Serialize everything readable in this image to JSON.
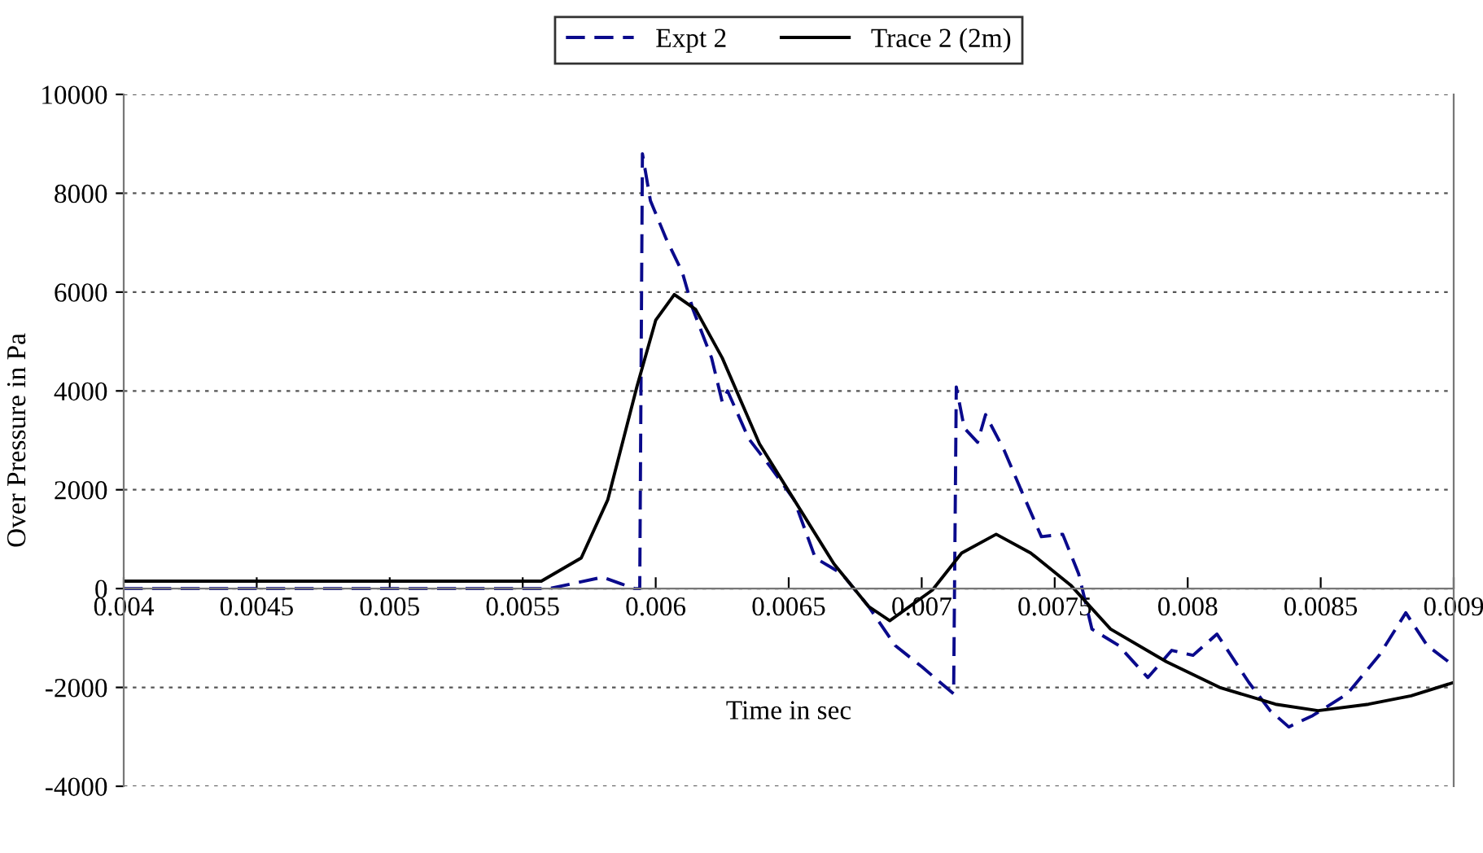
{
  "chart_data": {
    "type": "line",
    "xlabel": "Time in sec",
    "ylabel": "Over Pressure in Pa",
    "xlim": [
      0.004,
      0.009
    ],
    "xticks": [
      0.004,
      0.0045,
      0.005,
      0.0055,
      0.006,
      0.0065,
      0.007,
      0.0075,
      0.008,
      0.0085,
      0.009
    ],
    "ylim": [
      -4000,
      10000
    ],
    "yticks": [
      -4000,
      -2000,
      0,
      2000,
      4000,
      6000,
      8000,
      10000
    ],
    "grid": "y",
    "legend": "top",
    "marker": "none",
    "series": [
      {
        "name": "Expt 2",
        "color": "#0a0a8c",
        "line_style": "dashed",
        "x": [
          0.004,
          0.0045,
          0.005,
          0.0055,
          0.0056,
          0.0058,
          0.00592,
          0.00594,
          0.00595,
          0.00598,
          0.00604,
          0.0061,
          0.00614,
          0.00621,
          0.00625,
          0.00627,
          0.00635,
          0.00643,
          0.00652,
          0.0066,
          0.0067,
          0.0068,
          0.0069,
          0.007,
          0.00712,
          0.00713,
          0.00716,
          0.00721,
          0.00724,
          0.00731,
          0.00737,
          0.00745,
          0.00753,
          0.00759,
          0.00764,
          0.00774,
          0.00785,
          0.00794,
          0.00802,
          0.00811,
          0.00823,
          0.00831,
          0.00838,
          0.00847,
          0.0086,
          0.00872,
          0.00882,
          0.0089,
          0.00899
        ],
        "values": [
          0,
          0,
          0,
          0,
          0,
          230,
          0,
          0,
          8800,
          7850,
          7070,
          6400,
          5650,
          4670,
          3780,
          4000,
          3030,
          2470,
          1800,
          620,
          300,
          -360,
          -1150,
          -1580,
          -2130,
          4080,
          3250,
          2960,
          3520,
          2800,
          2040,
          1050,
          1100,
          300,
          -820,
          -1150,
          -1800,
          -1250,
          -1350,
          -920,
          -1900,
          -2470,
          -2800,
          -2570,
          -2130,
          -1350,
          -490,
          -1150,
          -1520
        ]
      },
      {
        "name": "Trace 2 (2m)",
        "color": "#000000",
        "line_style": "solid",
        "x": [
          0.004,
          0.0055,
          0.00557,
          0.00572,
          0.00582,
          0.00593,
          0.006,
          0.00607,
          0.00615,
          0.00625,
          0.00639,
          0.00652,
          0.00667,
          0.0068,
          0.00688,
          0.00704,
          0.00715,
          0.00728,
          0.00741,
          0.00756,
          0.00771,
          0.00792,
          0.00812,
          0.00833,
          0.00849,
          0.00868,
          0.00884,
          0.009
        ],
        "values": [
          150,
          150,
          150,
          620,
          1800,
          4100,
          5430,
          5950,
          5650,
          4670,
          2930,
          1800,
          500,
          -360,
          -650,
          -30,
          720,
          1100,
          720,
          70,
          -820,
          -1480,
          -2000,
          -2340,
          -2470,
          -2340,
          -2170,
          -1900
        ]
      }
    ]
  }
}
